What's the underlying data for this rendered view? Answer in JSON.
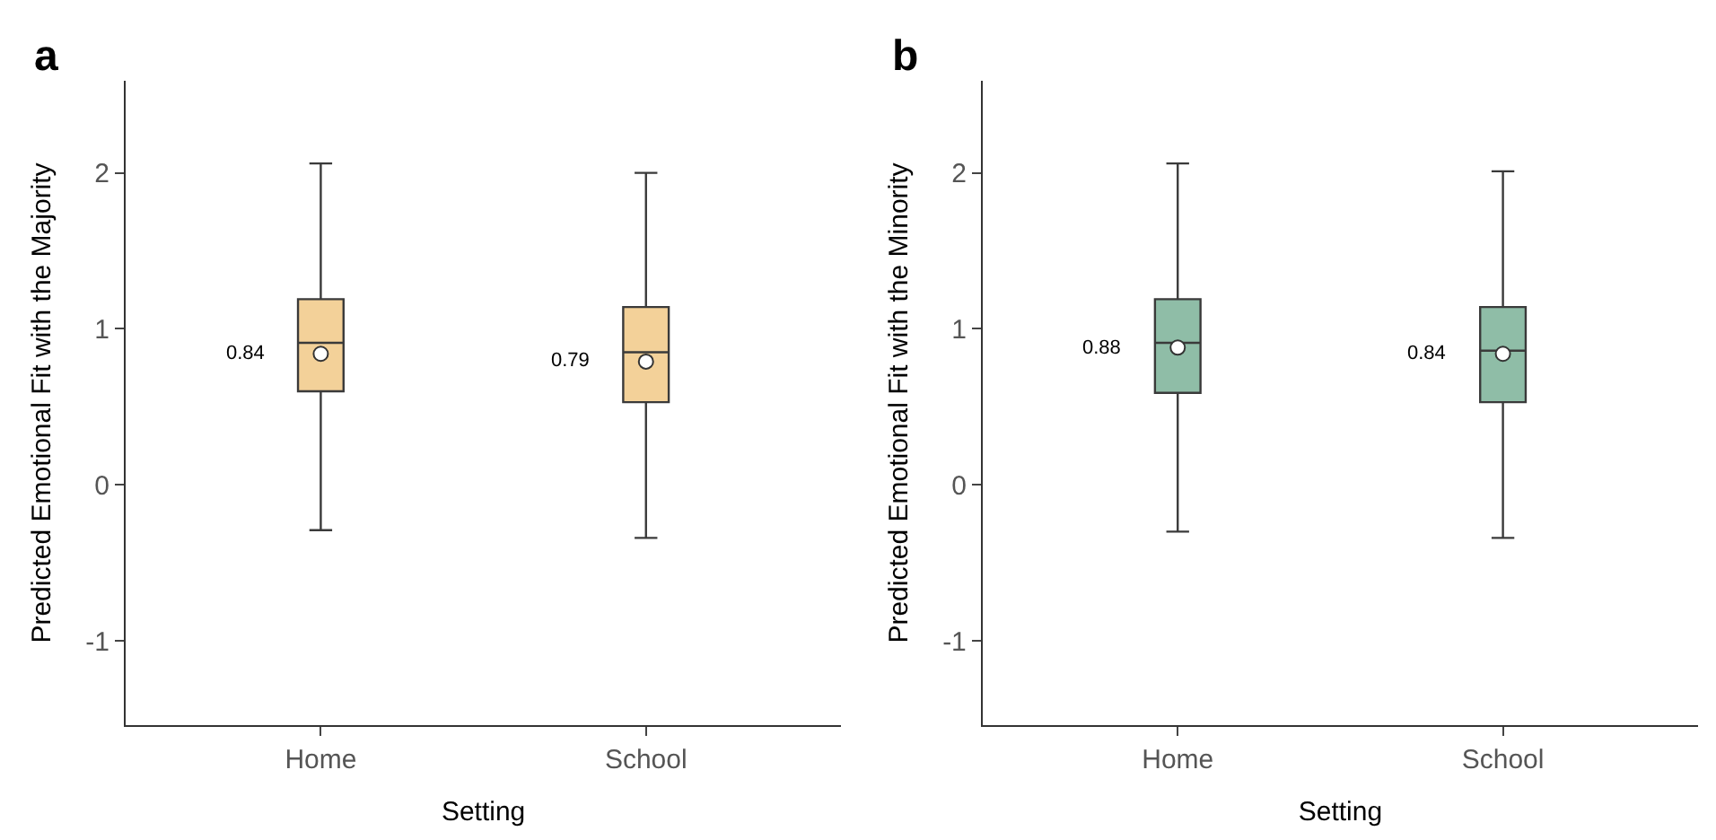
{
  "chart_data": [
    {
      "type": "box",
      "title": "a",
      "categories": [
        "Home",
        "School"
      ],
      "xlabel": "Setting",
      "ylabel": "Predicted Emotional Fit with the Majority",
      "ylim": [
        -1.54,
        2.59
      ],
      "yticks": [
        -1,
        0,
        1,
        2
      ],
      "color": "#f3d199",
      "boxes": [
        {
          "low": -0.29,
          "q1": 0.6,
          "median": 0.91,
          "q3": 1.19,
          "high": 2.06,
          "mean": 0.84
        },
        {
          "low": -0.34,
          "q1": 0.53,
          "median": 0.85,
          "q3": 1.14,
          "high": 2.0,
          "mean": 0.79
        }
      ],
      "annotations": [
        "0.84",
        "0.79"
      ]
    },
    {
      "type": "box",
      "title": "b",
      "categories": [
        "Home",
        "School"
      ],
      "xlabel": "Setting",
      "ylabel": "Predicted Emotional Fit with the Minority",
      "ylim": [
        -1.54,
        2.59
      ],
      "yticks": [
        -1,
        0,
        1,
        2
      ],
      "color": "#8fbda7",
      "boxes": [
        {
          "low": -0.3,
          "q1": 0.59,
          "median": 0.91,
          "q3": 1.19,
          "high": 2.06,
          "mean": 0.88
        },
        {
          "low": -0.34,
          "q1": 0.53,
          "median": 0.86,
          "q3": 1.14,
          "high": 2.01,
          "mean": 0.84
        }
      ],
      "annotations": [
        "0.88",
        "0.84"
      ]
    }
  ]
}
